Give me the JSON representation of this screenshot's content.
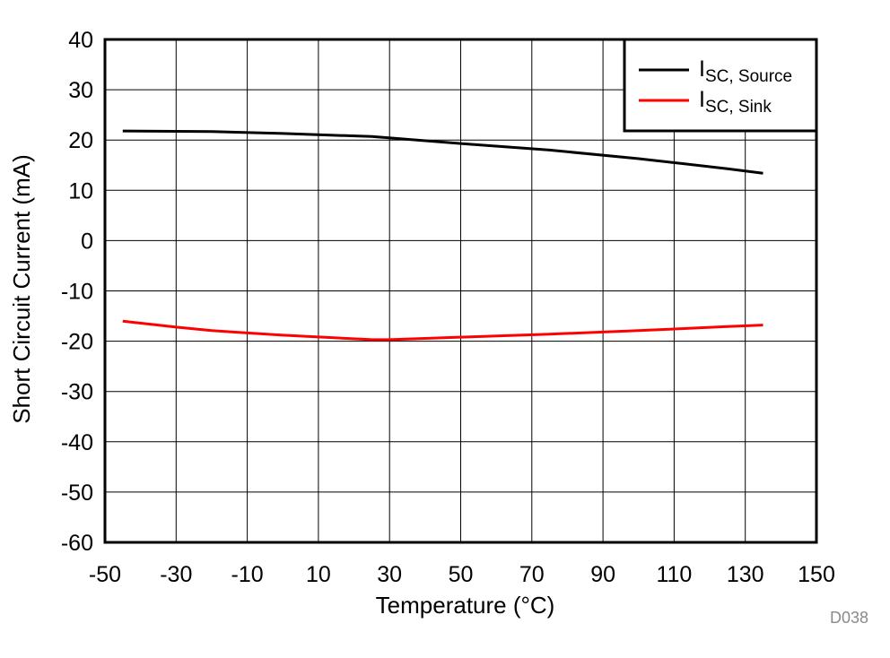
{
  "chart_data": {
    "type": "line",
    "title": "",
    "xlabel": "Temperature (°C)",
    "ylabel": "Short Circuit Current (mA)",
    "xlim": [
      -50,
      150
    ],
    "ylim": [
      -60,
      40
    ],
    "xticks": [
      -50,
      -30,
      -10,
      10,
      30,
      50,
      70,
      90,
      110,
      130,
      150
    ],
    "yticks": [
      40,
      30,
      20,
      10,
      0,
      -10,
      -20,
      -30,
      -40,
      -50,
      -60
    ],
    "xtick_labels": [
      "-50",
      "-30",
      "-10",
      "10",
      "30",
      "50",
      "70",
      "90",
      "110",
      "130",
      "150"
    ],
    "ytick_labels": [
      "40",
      "30",
      "20",
      "10",
      "0",
      "-10",
      "-20",
      "-30",
      "-40",
      "-50",
      "-60"
    ],
    "grid": true,
    "legend_position": "top-right",
    "series": [
      {
        "name": "ISC, Source",
        "label_main": "I",
        "label_sub": "SC, Source",
        "color": "#000000",
        "x": [
          -45,
          -20,
          0,
          25,
          50,
          75,
          100,
          125,
          135
        ],
        "y": [
          21.8,
          21.7,
          21.3,
          20.7,
          19.3,
          18.0,
          16.3,
          14.3,
          13.4
        ]
      },
      {
        "name": "ISC, Sink",
        "label_main": "I",
        "label_sub": "SC, Sink",
        "color": "#ff0000",
        "x": [
          -45,
          -30,
          -20,
          0,
          25,
          30,
          50,
          75,
          100,
          125,
          135
        ],
        "y": [
          -16.0,
          -17.2,
          -17.9,
          -18.8,
          -19.7,
          -19.7,
          -19.2,
          -18.6,
          -17.9,
          -17.1,
          -16.8
        ]
      }
    ],
    "figure_id": "D038"
  }
}
